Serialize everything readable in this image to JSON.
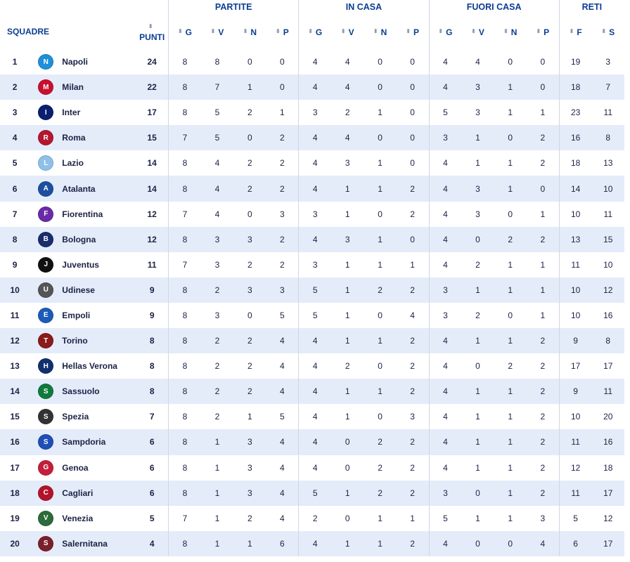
{
  "groups": {
    "partite": "PARTITE",
    "in_casa": "IN CASA",
    "fuori_casa": "FUORI CASA",
    "reti": "RETI"
  },
  "columns": {
    "squadre": "SQUADRE",
    "punti": "PUNTI",
    "g": "G",
    "v": "V",
    "n": "N",
    "p": "P",
    "f": "F",
    "s": "S",
    "sort_icon": "sort-arrows"
  },
  "colors": {
    "header_text": "#0b3d91",
    "row_alt_bg": "#e4ecfa",
    "text": "#1b2244"
  },
  "teams": [
    {
      "pos": "1",
      "name": "Napoli",
      "pts": "24",
      "pg": "8",
      "pv": "8",
      "pn": "0",
      "pp": "0",
      "hg": "4",
      "hv": "4",
      "hn": "0",
      "hp": "0",
      "ag": "4",
      "av": "4",
      "an": "0",
      "ap": "0",
      "f": "19",
      "s": "3",
      "crest_color": "#1e8fd8",
      "crest_letter": "N"
    },
    {
      "pos": "2",
      "name": "Milan",
      "pts": "22",
      "pg": "8",
      "pv": "7",
      "pn": "1",
      "pp": "0",
      "hg": "4",
      "hv": "4",
      "hn": "0",
      "hp": "0",
      "ag": "4",
      "av": "3",
      "an": "1",
      "ap": "0",
      "f": "18",
      "s": "7",
      "crest_color": "#c8102e",
      "crest_letter": "M"
    },
    {
      "pos": "3",
      "name": "Inter",
      "pts": "17",
      "pg": "8",
      "pv": "5",
      "pn": "2",
      "pp": "1",
      "hg": "3",
      "hv": "2",
      "hn": "1",
      "hp": "0",
      "ag": "5",
      "av": "3",
      "an": "1",
      "ap": "1",
      "f": "23",
      "s": "11",
      "crest_color": "#0a1f6e",
      "crest_letter": "I"
    },
    {
      "pos": "4",
      "name": "Roma",
      "pts": "15",
      "pg": "7",
      "pv": "5",
      "pn": "0",
      "pp": "2",
      "hg": "4",
      "hv": "4",
      "hn": "0",
      "hp": "0",
      "ag": "3",
      "av": "1",
      "an": "0",
      "ap": "2",
      "f": "16",
      "s": "8",
      "crest_color": "#b5172f",
      "crest_letter": "R"
    },
    {
      "pos": "5",
      "name": "Lazio",
      "pts": "14",
      "pg": "8",
      "pv": "4",
      "pn": "2",
      "pp": "2",
      "hg": "4",
      "hv": "3",
      "hn": "1",
      "hp": "0",
      "ag": "4",
      "av": "1",
      "an": "1",
      "ap": "2",
      "f": "18",
      "s": "13",
      "crest_color": "#8fc1e8",
      "crest_letter": "L"
    },
    {
      "pos": "6",
      "name": "Atalanta",
      "pts": "14",
      "pg": "8",
      "pv": "4",
      "pn": "2",
      "pp": "2",
      "hg": "4",
      "hv": "1",
      "hn": "1",
      "hp": "2",
      "ag": "4",
      "av": "3",
      "an": "1",
      "ap": "0",
      "f": "14",
      "s": "10",
      "crest_color": "#1c4fa0",
      "crest_letter": "A"
    },
    {
      "pos": "7",
      "name": "Fiorentina",
      "pts": "12",
      "pg": "7",
      "pv": "4",
      "pn": "0",
      "pp": "3",
      "hg": "3",
      "hv": "1",
      "hn": "0",
      "hp": "2",
      "ag": "4",
      "av": "3",
      "an": "0",
      "ap": "1",
      "f": "10",
      "s": "11",
      "crest_color": "#6a2aa8",
      "crest_letter": "F"
    },
    {
      "pos": "8",
      "name": "Bologna",
      "pts": "12",
      "pg": "8",
      "pv": "3",
      "pn": "3",
      "pp": "2",
      "hg": "4",
      "hv": "3",
      "hn": "1",
      "hp": "0",
      "ag": "4",
      "av": "0",
      "an": "2",
      "ap": "2",
      "f": "13",
      "s": "15",
      "crest_color": "#1a2d6b",
      "crest_letter": "B"
    },
    {
      "pos": "9",
      "name": "Juventus",
      "pts": "11",
      "pg": "7",
      "pv": "3",
      "pn": "2",
      "pp": "2",
      "hg": "3",
      "hv": "1",
      "hn": "1",
      "hp": "1",
      "ag": "4",
      "av": "2",
      "an": "1",
      "ap": "1",
      "f": "11",
      "s": "10",
      "crest_color": "#111111",
      "crest_letter": "J"
    },
    {
      "pos": "10",
      "name": "Udinese",
      "pts": "9",
      "pg": "8",
      "pv": "2",
      "pn": "3",
      "pp": "3",
      "hg": "5",
      "hv": "1",
      "hn": "2",
      "hp": "2",
      "ag": "3",
      "av": "1",
      "an": "1",
      "ap": "1",
      "f": "10",
      "s": "12",
      "crest_color": "#555555",
      "crest_letter": "U"
    },
    {
      "pos": "11",
      "name": "Empoli",
      "pts": "9",
      "pg": "8",
      "pv": "3",
      "pn": "0",
      "pp": "5",
      "hg": "5",
      "hv": "1",
      "hn": "0",
      "hp": "4",
      "ag": "3",
      "av": "2",
      "an": "0",
      "ap": "1",
      "f": "10",
      "s": "16",
      "crest_color": "#1d5bb8",
      "crest_letter": "E"
    },
    {
      "pos": "12",
      "name": "Torino",
      "pts": "8",
      "pg": "8",
      "pv": "2",
      "pn": "2",
      "pp": "4",
      "hg": "4",
      "hv": "1",
      "hn": "1",
      "hp": "2",
      "ag": "4",
      "av": "1",
      "an": "1",
      "ap": "2",
      "f": "9",
      "s": "8",
      "crest_color": "#8b1a1a",
      "crest_letter": "T"
    },
    {
      "pos": "13",
      "name": "Hellas Verona",
      "pts": "8",
      "pg": "8",
      "pv": "2",
      "pn": "2",
      "pp": "4",
      "hg": "4",
      "hv": "2",
      "hn": "0",
      "hp": "2",
      "ag": "4",
      "av": "0",
      "an": "2",
      "ap": "2",
      "f": "17",
      "s": "17",
      "crest_color": "#10306e",
      "crest_letter": "H"
    },
    {
      "pos": "14",
      "name": "Sassuolo",
      "pts": "8",
      "pg": "8",
      "pv": "2",
      "pn": "2",
      "pp": "4",
      "hg": "4",
      "hv": "1",
      "hn": "1",
      "hp": "2",
      "ag": "4",
      "av": "1",
      "an": "1",
      "ap": "2",
      "f": "9",
      "s": "11",
      "crest_color": "#0f7a3c",
      "crest_letter": "S"
    },
    {
      "pos": "15",
      "name": "Spezia",
      "pts": "7",
      "pg": "8",
      "pv": "2",
      "pn": "1",
      "pp": "5",
      "hg": "4",
      "hv": "1",
      "hn": "0",
      "hp": "3",
      "ag": "4",
      "av": "1",
      "an": "1",
      "ap": "2",
      "f": "10",
      "s": "20",
      "crest_color": "#333333",
      "crest_letter": "S"
    },
    {
      "pos": "16",
      "name": "Sampdoria",
      "pts": "6",
      "pg": "8",
      "pv": "1",
      "pn": "3",
      "pp": "4",
      "hg": "4",
      "hv": "0",
      "hn": "2",
      "hp": "2",
      "ag": "4",
      "av": "1",
      "an": "1",
      "ap": "2",
      "f": "11",
      "s": "16",
      "crest_color": "#1f4fb4",
      "crest_letter": "S"
    },
    {
      "pos": "17",
      "name": "Genoa",
      "pts": "6",
      "pg": "8",
      "pv": "1",
      "pn": "3",
      "pp": "4",
      "hg": "4",
      "hv": "0",
      "hn": "2",
      "hp": "2",
      "ag": "4",
      "av": "1",
      "an": "1",
      "ap": "2",
      "f": "12",
      "s": "18",
      "crest_color": "#c41e3a",
      "crest_letter": "G"
    },
    {
      "pos": "18",
      "name": "Cagliari",
      "pts": "6",
      "pg": "8",
      "pv": "1",
      "pn": "3",
      "pp": "4",
      "hg": "5",
      "hv": "1",
      "hn": "2",
      "hp": "2",
      "ag": "3",
      "av": "0",
      "an": "1",
      "ap": "2",
      "f": "11",
      "s": "17",
      "crest_color": "#b3132a",
      "crest_letter": "C"
    },
    {
      "pos": "19",
      "name": "Venezia",
      "pts": "5",
      "pg": "7",
      "pv": "1",
      "pn": "2",
      "pp": "4",
      "hg": "2",
      "hv": "0",
      "hn": "1",
      "hp": "1",
      "ag": "5",
      "av": "1",
      "an": "1",
      "ap": "3",
      "f": "5",
      "s": "12",
      "crest_color": "#2c6b3a",
      "crest_letter": "V"
    },
    {
      "pos": "20",
      "name": "Salernitana",
      "pts": "4",
      "pg": "8",
      "pv": "1",
      "pn": "1",
      "pp": "6",
      "hg": "4",
      "hv": "1",
      "hn": "1",
      "hp": "2",
      "ag": "4",
      "av": "0",
      "an": "0",
      "ap": "4",
      "f": "6",
      "s": "17",
      "crest_color": "#7a1f2b",
      "crest_letter": "S"
    }
  ]
}
